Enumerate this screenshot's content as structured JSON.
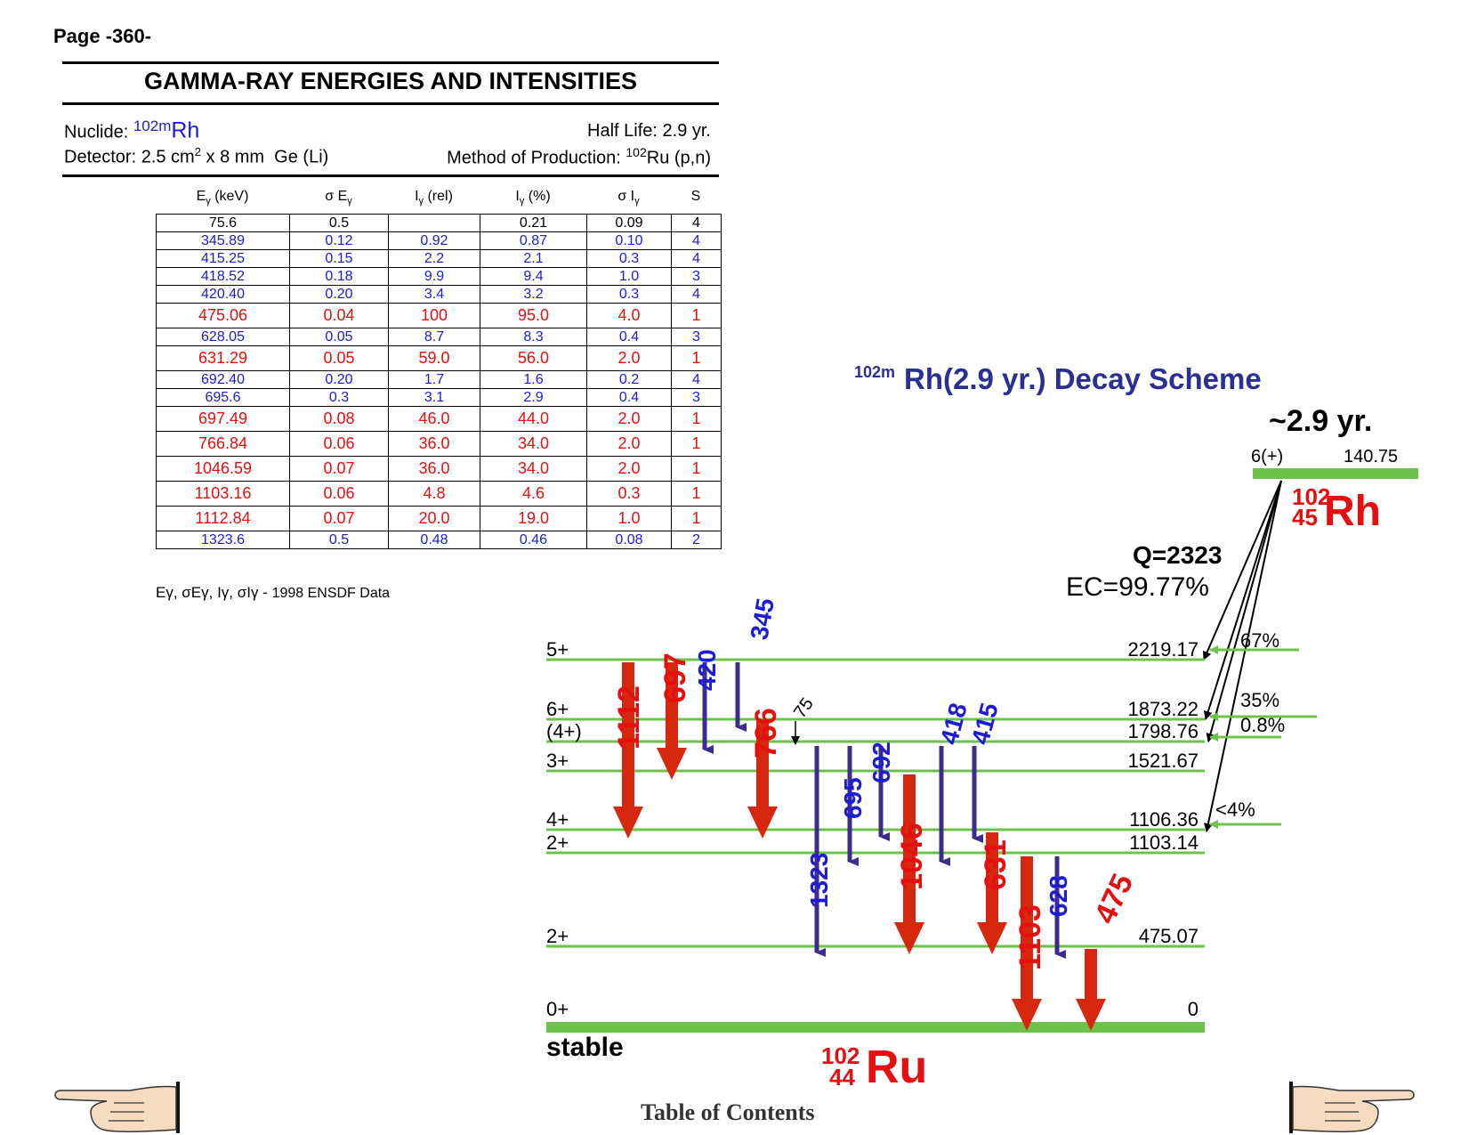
{
  "page_label": "Page -360-",
  "doc_title": "GAMMA-RAY ENERGIES AND INTENSITIES",
  "nuclide": {
    "label": "Nuclide:",
    "mass": "102m",
    "symbol": "Rh"
  },
  "half_life": "Half Life: 2.9 yr.",
  "detector": {
    "label": "Detector: 2.5 cm",
    "sup": "2",
    "rest": " x 8 mm  Ge (Li)"
  },
  "production": {
    "label": "Method of Production:",
    "mass": "102",
    "rest": "Ru (p,n)"
  },
  "table": {
    "headers": [
      {
        "main": "E",
        "sub": "γ",
        "tail": " (keV)"
      },
      {
        "main": "σ E",
        "sub": "γ",
        "tail": ""
      },
      {
        "main": "I",
        "sub": "γ",
        "tail": " (rel)"
      },
      {
        "main": "I",
        "sub": "γ",
        "tail": " (%)"
      },
      {
        "main": "σ I",
        "sub": "γ",
        "tail": ""
      },
      {
        "main": "S",
        "sub": "",
        "tail": ""
      }
    ],
    "rows": [
      {
        "color": "#000000",
        "cells": [
          "75.6",
          "0.5",
          "",
          "0.21",
          "0.09",
          "4"
        ]
      },
      {
        "color": "#1b1bd8",
        "cells": [
          "345.89",
          "0.12",
          "0.92",
          "0.87",
          "0.10",
          "4"
        ]
      },
      {
        "color": "#1b1bd8",
        "cells": [
          "415.25",
          "0.15",
          "2.2",
          "2.1",
          "0.3",
          "4"
        ]
      },
      {
        "color": "#1b1bd8",
        "cells": [
          "418.52",
          "0.18",
          "9.9",
          "9.4",
          "1.0",
          "3"
        ]
      },
      {
        "color": "#1b1bd8",
        "cells": [
          "420.40",
          "0.20",
          "3.4",
          "3.2",
          "0.3",
          "4"
        ]
      },
      {
        "color": "#e60f0f",
        "cells": [
          "475.06",
          "0.04",
          "100",
          "95.0",
          "4.0",
          "1"
        ]
      },
      {
        "color": "#1b1bd8",
        "cells": [
          "628.05",
          "0.05",
          "8.7",
          "8.3",
          "0.4",
          "3"
        ]
      },
      {
        "color": "#e60f0f",
        "cells": [
          "631.29",
          "0.05",
          "59.0",
          "56.0",
          "2.0",
          "1"
        ]
      },
      {
        "color": "#1b1bd8",
        "cells": [
          "692.40",
          "0.20",
          "1.7",
          "1.6",
          "0.2",
          "4"
        ]
      },
      {
        "color": "#1b1bd8",
        "cells": [
          "695.6",
          "0.3",
          "3.1",
          "2.9",
          "0.4",
          "3"
        ]
      },
      {
        "color": "#e60f0f",
        "cells": [
          "697.49",
          "0.08",
          "46.0",
          "44.0",
          "2.0",
          "1"
        ]
      },
      {
        "color": "#e60f0f",
        "cells": [
          "766.84",
          "0.06",
          "36.0",
          "34.0",
          "2.0",
          "1"
        ]
      },
      {
        "color": "#e60f0f",
        "cells": [
          "1046.59",
          "0.07",
          "36.0",
          "34.0",
          "2.0",
          "1"
        ]
      },
      {
        "color": "#e60f0f",
        "cells": [
          "1103.16",
          "0.06",
          "4.8",
          "4.6",
          "0.3",
          "1"
        ]
      },
      {
        "color": "#e60f0f",
        "cells": [
          "1112.84",
          "0.07",
          "20.0",
          "19.0",
          "1.0",
          "1"
        ]
      },
      {
        "color": "#1b1bd8",
        "cells": [
          "1323.6",
          "0.5",
          "0.48",
          "0.46",
          "0.08",
          "2"
        ]
      }
    ]
  },
  "footnote": {
    "symbols": "Eγ, σEγ, Iγ, σIγ - ",
    "text": "1998 ENSDF Data"
  },
  "scheme": {
    "title_mass": "102m",
    "title": "Rh(2.9 yr.) Decay Scheme",
    "parent_half_life": "~2.9 yr.",
    "parent_spin": "6(+)",
    "parent_energy": "140.75",
    "parent": {
      "mass": "102",
      "z": "45",
      "symbol": "Rh"
    },
    "q_value": "Q=2323",
    "ec": "EC=99.77%",
    "levels": [
      {
        "spin": "5+",
        "energy": "2219.17",
        "feed": "67%"
      },
      {
        "spin": "6+",
        "energy": "1873.22",
        "feed": "35%"
      },
      {
        "spin": "(4+)",
        "energy": "1798.76",
        "feed": "0.8%"
      },
      {
        "spin": "3+",
        "energy": "1521.67",
        "feed": ""
      },
      {
        "spin": "4+",
        "energy": "1106.36",
        "feed": "<4%"
      },
      {
        "spin": "2+",
        "energy": "1103.14",
        "feed": ""
      },
      {
        "spin": "2+",
        "energy": "475.07",
        "feed": ""
      },
      {
        "spin": "0+",
        "energy": "0",
        "feed": ""
      }
    ],
    "gammas": {
      "g1112": "1112",
      "g697": "697",
      "g420": "420",
      "g345": "345",
      "g766": "766",
      "g75": "75",
      "g1323": "1323",
      "g695": "695",
      "g692": "692",
      "g418": "418",
      "g415": "415",
      "g1046": "1046",
      "g631": "631",
      "g1103": "1103",
      "g628": "628",
      "g475": "475"
    },
    "stable": "stable",
    "daughter": {
      "mass": "102",
      "z": "44",
      "symbol": "Ru"
    },
    "colors": {
      "strong": "#d7280f",
      "weak": "#3d2c8d",
      "level": "#6cc24a",
      "label_blue": "#1b1bd8",
      "label_red": "#e60f0f",
      "title": "#2a2f93"
    }
  },
  "toc_link": "Table of Contents"
}
